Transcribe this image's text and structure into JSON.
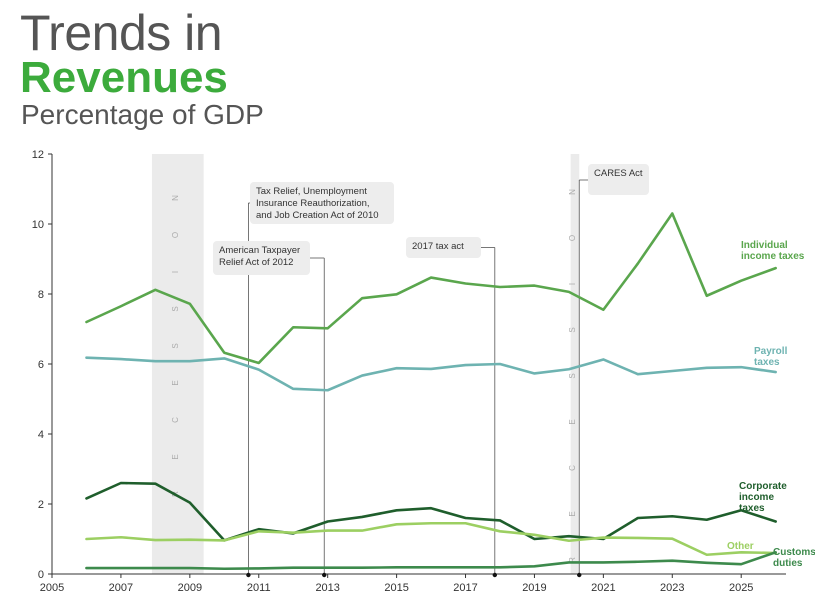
{
  "header": {
    "title_line1": "Trends in",
    "title_line2": "Revenues",
    "subtitle": "Percentage of GDP"
  },
  "colors": {
    "brand": "#3cab3c",
    "individual": "#5aa64d",
    "payroll": "#6eb3b1",
    "corporate": "#1f5e2c",
    "other": "#9ccf62",
    "customs": "#3d8a4c",
    "recession_shade": "#ebebeb"
  },
  "chart_data": {
    "type": "line",
    "title": "Trends in Revenues",
    "subtitle": "Percentage of GDP",
    "xlabel": "",
    "ylabel": "",
    "xlim": [
      2005,
      2026.3
    ],
    "ylim": [
      0,
      12
    ],
    "xticks": [
      2005,
      2007,
      2009,
      2011,
      2013,
      2015,
      2017,
      2019,
      2021,
      2023,
      2025
    ],
    "yticks": [
      0,
      2,
      4,
      6,
      8,
      10,
      12
    ],
    "grid": false,
    "x": [
      2006,
      2007,
      2008,
      2009,
      2010,
      2011,
      2012,
      2013,
      2014,
      2015,
      2016,
      2017,
      2018,
      2019,
      2020,
      2021,
      2022,
      2023,
      2024,
      2025,
      2026
    ],
    "series": [
      {
        "name": "Individual income taxes",
        "label_lines": [
          "Individual",
          "income taxes"
        ],
        "color_key": "individual",
        "values": [
          7.2,
          7.65,
          8.12,
          7.72,
          6.32,
          6.03,
          7.05,
          7.02,
          7.88,
          7.99,
          8.47,
          8.3,
          8.2,
          8.24,
          8.06,
          7.55,
          8.87,
          10.3,
          7.95,
          8.38,
          8.74
        ]
      },
      {
        "name": "Payroll taxes",
        "label_lines": [
          "Payroll",
          "taxes"
        ],
        "color_key": "payroll",
        "values": [
          6.18,
          6.14,
          6.08,
          6.08,
          6.16,
          5.84,
          5.29,
          5.25,
          5.67,
          5.88,
          5.86,
          5.97,
          6.0,
          5.73,
          5.85,
          6.13,
          5.71,
          5.8,
          5.89,
          5.91,
          5.77
        ]
      },
      {
        "name": "Corporate income taxes",
        "label_lines": [
          "Corporate",
          "income",
          "taxes"
        ],
        "color_key": "corporate",
        "values": [
          2.16,
          2.6,
          2.58,
          2.04,
          0.96,
          1.28,
          1.16,
          1.5,
          1.63,
          1.82,
          1.88,
          1.6,
          1.53,
          1.0,
          1.08,
          1.0,
          1.6,
          1.65,
          1.55,
          1.82,
          1.5
        ]
      },
      {
        "name": "Other",
        "label_lines": [
          "Other"
        ],
        "color_key": "other",
        "values": [
          1.0,
          1.05,
          0.97,
          0.98,
          0.96,
          1.22,
          1.18,
          1.24,
          1.24,
          1.42,
          1.45,
          1.45,
          1.22,
          1.12,
          0.95,
          1.04,
          1.03,
          1.01,
          0.55,
          0.62,
          0.6
        ]
      },
      {
        "name": "Customs duties",
        "label_lines": [
          "Customs",
          "duties"
        ],
        "color_key": "customs",
        "values": [
          0.17,
          0.17,
          0.17,
          0.17,
          0.15,
          0.16,
          0.18,
          0.18,
          0.18,
          0.19,
          0.19,
          0.19,
          0.19,
          0.22,
          0.33,
          0.33,
          0.35,
          0.38,
          0.32,
          0.28,
          0.62
        ]
      }
    ],
    "recessions": [
      {
        "start": 2007.9,
        "end": 2009.4,
        "label": "RECESSION"
      },
      {
        "start": 2020.05,
        "end": 2020.3,
        "label": "RECESSION"
      }
    ],
    "annotations": [
      {
        "x": 2010.7,
        "lines": [
          "Tax Relief, Unemployment",
          "Insurance Reauthorization,",
          "and Job Creation Act of 2010"
        ]
      },
      {
        "x": 2012.9,
        "lines": [
          "American Taxpayer",
          "Relief Act of 2012"
        ]
      },
      {
        "x": 2017.85,
        "lines": [
          "2017 tax act"
        ]
      },
      {
        "x": 2020.3,
        "lines": [
          "CARES Act"
        ]
      }
    ]
  }
}
